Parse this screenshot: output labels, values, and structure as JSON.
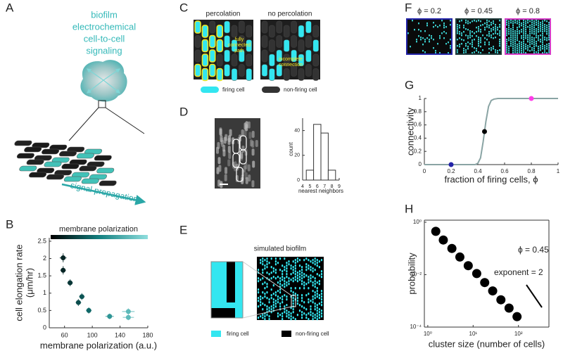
{
  "panel_labels": [
    "A",
    "B",
    "C",
    "D",
    "E",
    "F",
    "G",
    "H"
  ],
  "panel_a": {
    "title_lines": [
      "biofilm",
      "electrochemical",
      "cell-to-cell",
      "signaling"
    ],
    "arrow_label": "signal propagation"
  },
  "panel_c": {
    "titles": [
      "percolation",
      "no percolation"
    ],
    "annotation_fully": [
      "fully",
      "connected",
      "path"
    ],
    "annotation_incomplete": [
      "incomplete",
      "connection"
    ],
    "legend": [
      "firing cell",
      "non-firing cell"
    ]
  },
  "panel_e": {
    "title": "simulated biofilm",
    "legend": [
      "firing cell",
      "non-firing cell"
    ]
  },
  "panel_f": {
    "snapshots": [
      {
        "label": "ϕ = 0.2",
        "phi": 0.2,
        "color": "#2323a8"
      },
      {
        "label": "ϕ = 0.45",
        "phi": 0.45,
        "color": "#1f3b3b"
      },
      {
        "label": "ϕ = 0.8",
        "phi": 0.8,
        "color": "#d43cc8"
      }
    ]
  },
  "chart_data": [
    {
      "type": "scatter",
      "x_label": "membrane polarization (a.u.)",
      "y_label": "cell elongation rate",
      "y_unit": "(μm/hr)",
      "colorbar_label": "membrane polarization",
      "colormap": [
        "#000000",
        "#138080",
        "#8fdede"
      ],
      "x": [
        58,
        58,
        68,
        85,
        80,
        95,
        125,
        152,
        152
      ],
      "values": [
        2.02,
        1.66,
        1.3,
        0.9,
        0.73,
        0.5,
        0.33,
        0.47,
        0.3
      ],
      "x_err": [
        5,
        4,
        4,
        4,
        4,
        4,
        6,
        9,
        8
      ],
      "y_err": [
        0.13,
        0.12,
        0.1,
        0.1,
        0.1,
        0.09,
        0.08,
        0.09,
        0.08
      ],
      "xlim": [
        38,
        180
      ],
      "ylim": [
        0,
        2.6
      ],
      "xticks": [
        60,
        100,
        140,
        180
      ],
      "yticks": [
        0,
        0.5,
        1,
        1.5,
        2,
        2.5
      ]
    },
    {
      "type": "histogram",
      "x_label": "nearest neighbors",
      "y_label": "count",
      "bins": [
        4.5,
        5.5,
        6.5,
        7.5,
        8.5
      ],
      "values": [
        8,
        45,
        38,
        8
      ],
      "xlim": [
        4,
        9
      ],
      "ylim": [
        0,
        50
      ],
      "xticks": [
        4,
        5,
        6,
        7,
        8,
        9
      ],
      "yticks": [
        0,
        20,
        40
      ]
    },
    {
      "type": "line",
      "x_label": "fraction of firing cells, ϕ",
      "y_label": "connectivity",
      "color": "#8aa4a4",
      "x": [
        0,
        0.38,
        0.4,
        0.42,
        0.44,
        0.45,
        0.46,
        0.48,
        0.5,
        0.52,
        0.55,
        1
      ],
      "values": [
        0,
        0,
        0.02,
        0.1,
        0.35,
        0.5,
        0.65,
        0.88,
        0.97,
        0.99,
        1,
        1
      ],
      "markers": {
        "x": [
          0.2,
          0.45,
          0.8
        ],
        "values": [
          0,
          0.5,
          1
        ],
        "colors": [
          "#2323a8",
          "#000000",
          "#ff3de8"
        ]
      },
      "xlim": [
        0,
        1
      ],
      "ylim": [
        0,
        1
      ],
      "xticks": [
        0,
        0.2,
        0.4,
        0.6,
        0.8,
        1
      ],
      "yticks": [
        0,
        0.2,
        0.4,
        0.6,
        0.8,
        1
      ]
    },
    {
      "type": "scatter",
      "x_label": "cluster size (number of cells)",
      "y_label": "probability",
      "xlog": true,
      "ylog": true,
      "color": "#000000",
      "annotations": [
        "ϕ = 0.45",
        "exponent = 2"
      ],
      "x": [
        1.5,
        2.2,
        3.4,
        5.1,
        7.8,
        12,
        18,
        27,
        41,
        62,
        93
      ],
      "values": [
        0.45,
        0.21,
        0.1,
        0.047,
        0.022,
        0.011,
        0.005,
        0.0024,
        0.0011,
        0.00053,
        0.00025
      ],
      "xlim": [
        0.84,
        470
      ],
      "ylim": [
        0.0001,
        1.2
      ],
      "xticks": [
        {
          "value": 1,
          "label": "10⁰"
        },
        {
          "value": 10,
          "label": "10¹"
        },
        {
          "value": 100,
          "label": "10²"
        }
      ],
      "yticks": [
        {
          "value": 1,
          "label": "10⁰"
        },
        {
          "value": 0.01,
          "label": "10⁻²"
        },
        {
          "value": 0.0001,
          "label": "10⁻⁴"
        }
      ]
    }
  ]
}
